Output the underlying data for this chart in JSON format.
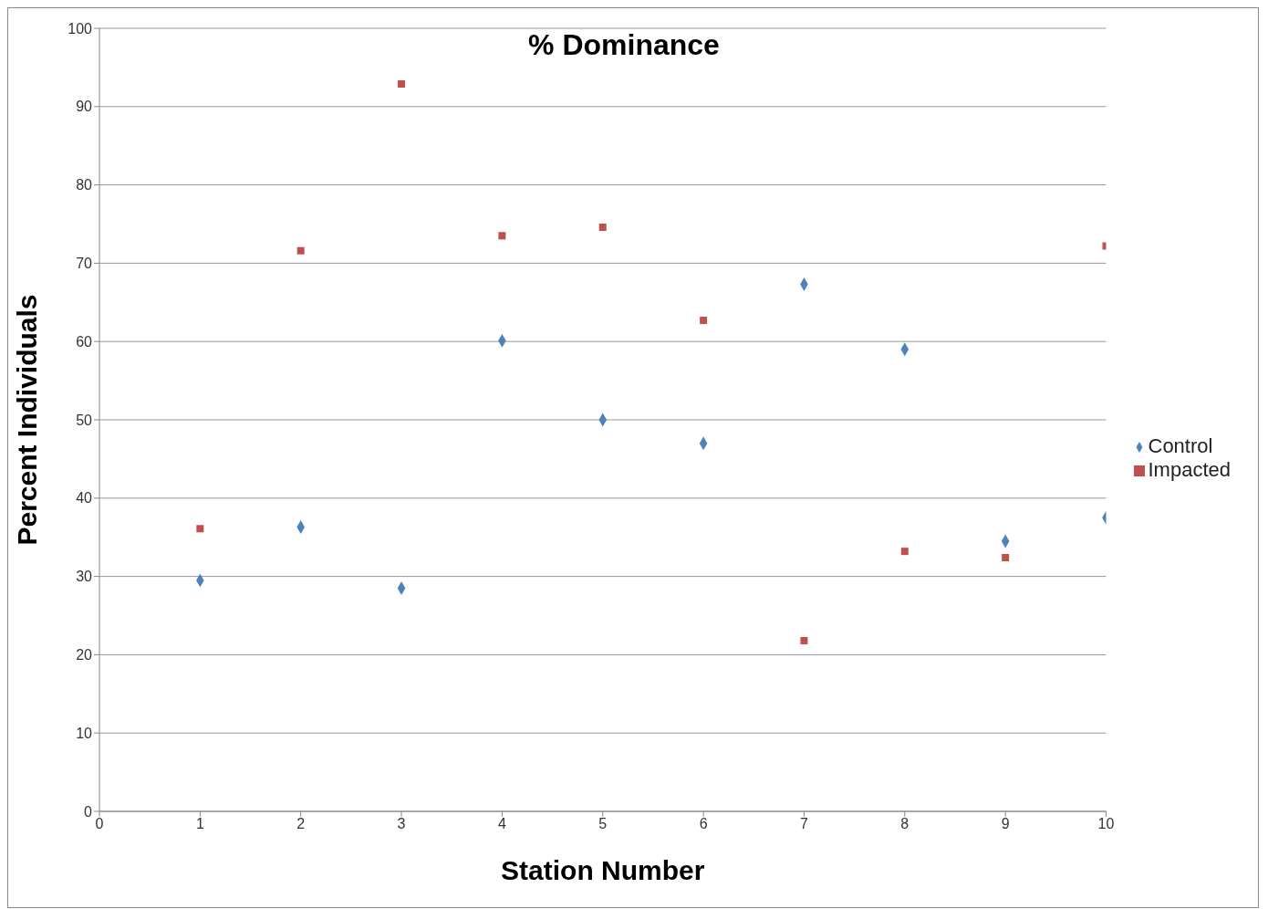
{
  "chart_data": {
    "type": "scatter",
    "title": "% Dominance",
    "xlabel": "Station Number",
    "ylabel": "Percent Individuals",
    "x": [
      1,
      2,
      3,
      4,
      5,
      6,
      7,
      8,
      9,
      10
    ],
    "series": [
      {
        "name": "Control",
        "color": "#4f81bd",
        "marker": "diamond",
        "values": [
          29.5,
          36.3,
          28.5,
          60.1,
          50,
          47,
          67.3,
          59,
          34.5,
          37.5
        ]
      },
      {
        "name": "Impacted",
        "color": "#c0504d",
        "marker": "square",
        "values": [
          36.1,
          71.6,
          92.9,
          73.5,
          74.6,
          62.7,
          21.8,
          33.2,
          32.4,
          72.2
        ]
      }
    ],
    "xlim": [
      0,
      10
    ],
    "xticks": [
      0,
      1,
      2,
      3,
      4,
      5,
      6,
      7,
      8,
      9,
      10
    ],
    "ylim": [
      0,
      100
    ],
    "yticks": [
      0,
      10,
      20,
      30,
      40,
      50,
      60,
      70,
      80,
      90,
      100
    ],
    "grid": "y",
    "legend": "right"
  }
}
